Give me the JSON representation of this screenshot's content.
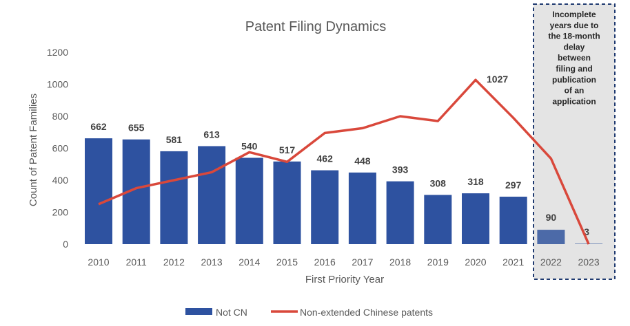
{
  "chart_data": {
    "type": "bar",
    "title": "Patent Filing Dynamics",
    "xlabel": "First Priority Year",
    "ylabel": "Count of Patent Families",
    "ylim": [
      0,
      1200
    ],
    "yticks": [
      0,
      200,
      400,
      600,
      800,
      1000,
      1200
    ],
    "grid": false,
    "legend_position": "bottom",
    "categories": [
      "2010",
      "2011",
      "2012",
      "2013",
      "2014",
      "2015",
      "2016",
      "2017",
      "2018",
      "2019",
      "2020",
      "2021",
      "2022",
      "2023"
    ],
    "series": [
      {
        "name": "Not CN",
        "type": "bar",
        "color": "#2E52A0",
        "values": [
          662,
          655,
          581,
          613,
          540,
          517,
          462,
          448,
          393,
          308,
          318,
          297,
          90,
          3
        ]
      },
      {
        "name": "Non-extended Chinese patents",
        "type": "line",
        "color": "#D9483B",
        "values": [
          250,
          350,
          400,
          450,
          575,
          515,
          695,
          725,
          800,
          770,
          1027,
          790,
          535,
          0
        ],
        "point_labels": {
          "2020": "1027"
        }
      }
    ],
    "annotation": {
      "text": [
        "Incomplete",
        "years due to",
        "the 18-month",
        "delay",
        "between",
        "filing and",
        "publication",
        "of an",
        "application"
      ],
      "categories": [
        "2022",
        "2023"
      ]
    }
  }
}
